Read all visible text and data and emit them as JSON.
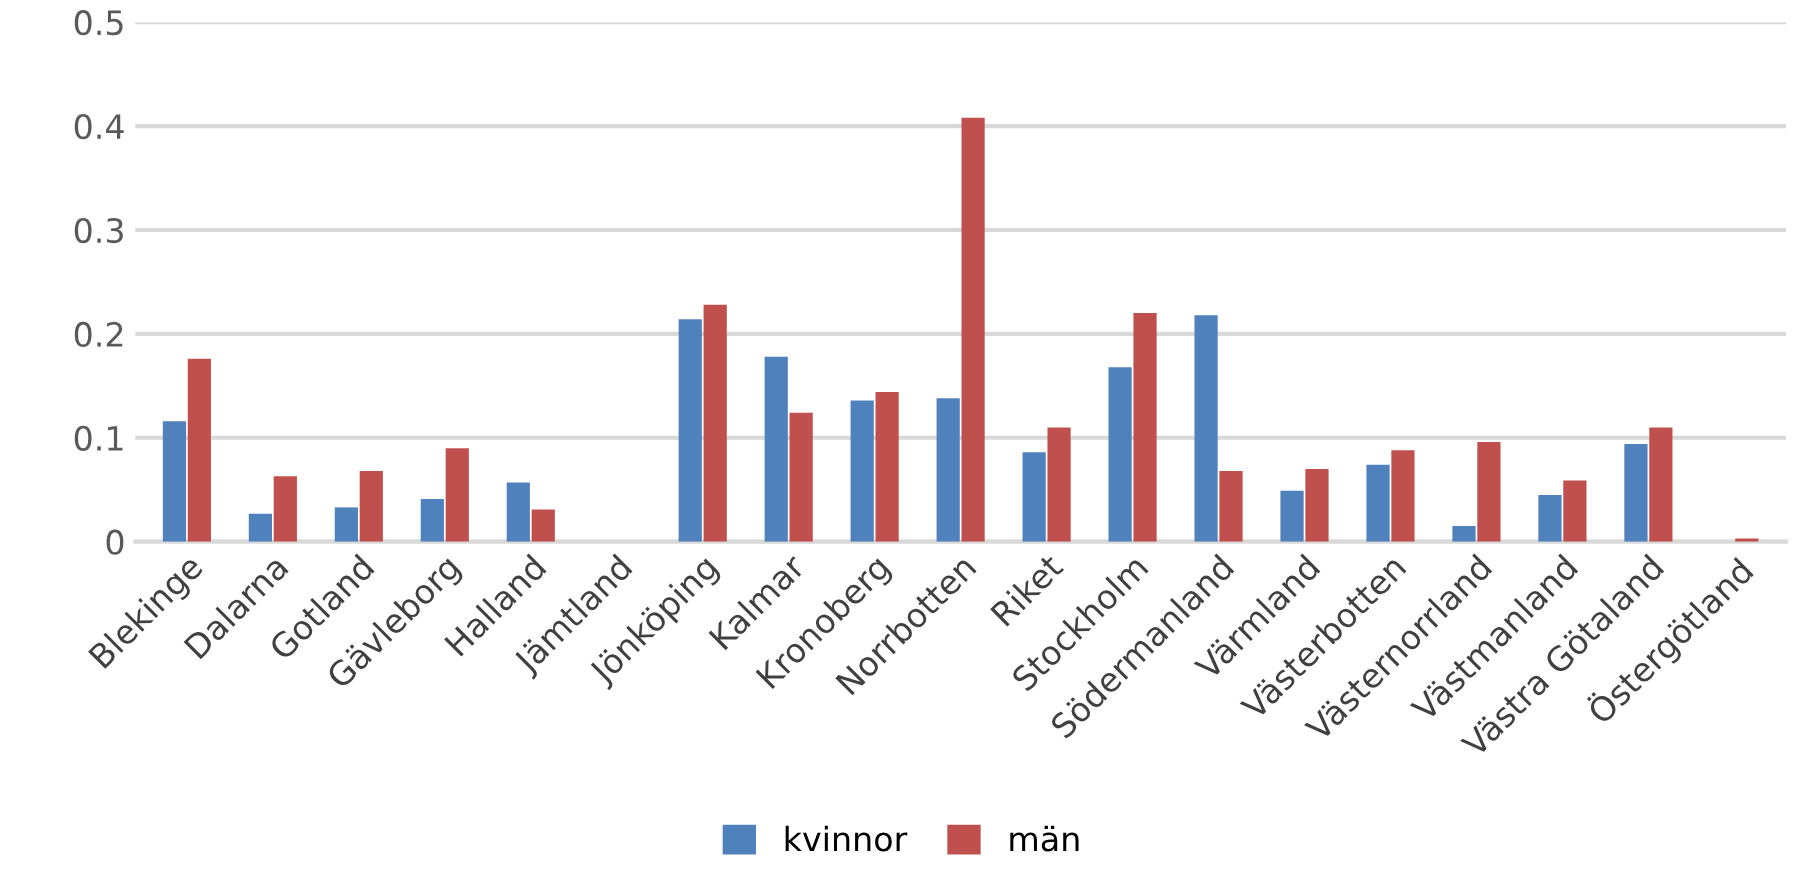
{
  "chart_data": {
    "type": "bar",
    "categories": [
      "Blekinge",
      "Dalarna",
      "Gotland",
      "Gävleborg",
      "Halland",
      "Jämtland",
      "Jönköping",
      "Kalmar",
      "Kronoberg",
      "Norrbotten",
      "Riket",
      "Stockholm",
      "Södermanland",
      "Värmland",
      "Västerbotten",
      "Västernorrland",
      "Västmanland",
      "Västra Götaland",
      "Östergötland"
    ],
    "series": [
      {
        "name": "kvinnor",
        "color": "#4f81bd",
        "values": [
          0.116,
          0.027,
          0.033,
          0.041,
          0.057,
          0,
          0.214,
          0.178,
          0.136,
          0.138,
          0.086,
          0.168,
          0.218,
          0.049,
          0.074,
          0.015,
          0.045,
          0.094,
          0
        ]
      },
      {
        "name": "män",
        "color": "#c0504d",
        "values": [
          0.176,
          0.063,
          0.068,
          0.09,
          0.031,
          0,
          0.228,
          0.124,
          0.144,
          0.408,
          0.11,
          0.22,
          0.068,
          0.07,
          0.088,
          0.096,
          0.059,
          0.11,
          0.003
        ]
      }
    ],
    "ylim": [
      0,
      0.5
    ],
    "yticks": [
      0,
      0.1,
      0.2,
      0.3,
      0.4,
      0.5
    ],
    "grid": "y",
    "legend": "bottom"
  }
}
